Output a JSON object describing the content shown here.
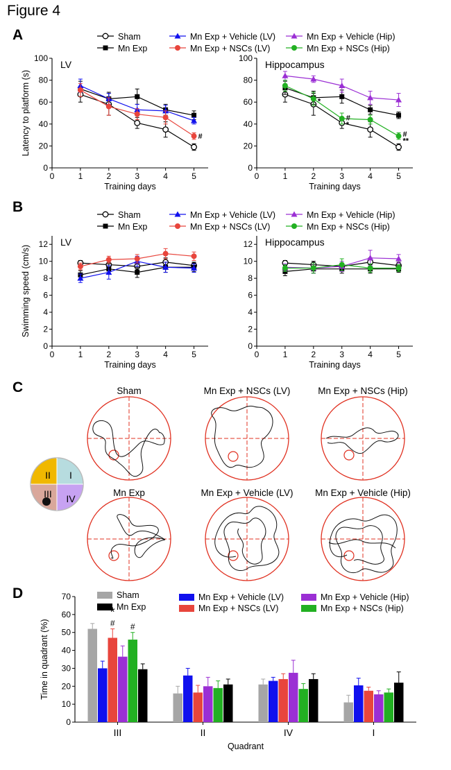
{
  "figure_title": "Figure 4",
  "colors": {
    "sham": "#000000",
    "mn_exp": "#000000",
    "veh_lv": "#1010ee",
    "nsc_lv": "#e8453c",
    "veh_hip": "#9b2fd4",
    "nsc_hip": "#22b022",
    "bar_sham": "#a6a6a6",
    "track_circle": "#e03020"
  },
  "panels": {
    "A": {
      "label": "A",
      "legend": [
        "Sham",
        "Mn Exp",
        "Mn Exp + Vehicle (LV)",
        "Mn Exp + NSCs (LV)",
        "Mn Exp + Vehicle (Hip)",
        "Mn Exp + NSCs (Hip)"
      ]
    },
    "B": {
      "label": "B",
      "legend": [
        "Sham",
        "Mn Exp",
        "Mn Exp + Vehicle (LV)",
        "Mn Exp + NSCs (LV)",
        "Mn Exp + Vehicle (Hip)",
        "Mn Exp + NSCs (Hip)"
      ]
    },
    "C": {
      "label": "C",
      "quadrant_labels": [
        "II",
        "I",
        "III",
        "IV"
      ],
      "track_titles": [
        "Sham",
        "Mn Exp + NSCs (LV)",
        "Mn Exp + NSCs (Hip)",
        "Mn Exp",
        "Mn Exp + Vehicle (LV)",
        "Mn Exp + Vehicle (Hip)"
      ]
    },
    "D": {
      "label": "D",
      "legend": [
        "Sham",
        "Mn Exp",
        "Mn Exp + Vehicle (LV)",
        "Mn Exp + NSCs (LV)",
        "Mn Exp + Vehicle (Hip)",
        "Mn Exp + NSCs (Hip)"
      ]
    }
  },
  "chart_data": [
    {
      "id": "A-LV",
      "type": "line",
      "panel_title": "LV",
      "xlabel": "Training days",
      "ylabel": "Latency to platform (s)",
      "x": [
        1,
        2,
        3,
        4,
        5
      ],
      "xlim": [
        0,
        5.5
      ],
      "ylim": [
        0,
        100
      ],
      "yticks": [
        0,
        20,
        40,
        60,
        80,
        100
      ],
      "series": [
        {
          "name": "Sham",
          "color_key": "sham",
          "marker": "open-circle",
          "values": [
            67,
            58,
            41,
            35,
            19
          ],
          "err": [
            7,
            10,
            5,
            7,
            3
          ]
        },
        {
          "name": "Mn Exp",
          "color_key": "mn_exp",
          "marker": "square",
          "values": [
            72,
            63,
            65,
            53,
            48
          ],
          "err": [
            7,
            6,
            7,
            5,
            4
          ]
        },
        {
          "name": "Mn Exp + Vehicle (LV)",
          "color_key": "veh_lv",
          "marker": "triangle",
          "values": [
            75,
            63,
            53,
            52,
            43
          ],
          "err": [
            6,
            5,
            5,
            5,
            3
          ]
        },
        {
          "name": "Mn Exp + NSCs (LV)",
          "color_key": "nsc_lv",
          "marker": "filled-circle",
          "values": [
            71,
            56,
            49,
            46,
            29
          ],
          "err": [
            6,
            8,
            5,
            6,
            3
          ]
        }
      ],
      "annotations": [
        {
          "x": 5,
          "y": 29,
          "text": "#"
        }
      ]
    },
    {
      "id": "A-Hip",
      "type": "line",
      "panel_title": "Hippocampus",
      "xlabel": "Training days",
      "ylabel": "",
      "x": [
        1,
        2,
        3,
        4,
        5
      ],
      "xlim": [
        0,
        5.5
      ],
      "ylim": [
        0,
        100
      ],
      "yticks": [
        0,
        20,
        40,
        60,
        80,
        100
      ],
      "series": [
        {
          "name": "Sham",
          "color_key": "sham",
          "marker": "open-circle",
          "values": [
            67,
            58,
            41,
            35,
            19
          ],
          "err": [
            7,
            10,
            5,
            7,
            3
          ]
        },
        {
          "name": "Mn Exp",
          "color_key": "mn_exp",
          "marker": "square",
          "values": [
            73,
            64,
            65,
            53,
            48
          ],
          "err": [
            6,
            6,
            6,
            4,
            3
          ]
        },
        {
          "name": "Mn Exp + Vehicle (Hip)",
          "color_key": "veh_hip",
          "marker": "triangle",
          "values": [
            84,
            81,
            75,
            64,
            62
          ],
          "err": [
            4,
            3,
            6,
            6,
            6
          ]
        },
        {
          "name": "Mn Exp + NSCs (Hip)",
          "color_key": "nsc_hip",
          "marker": "filled-circle",
          "values": [
            75,
            63,
            45,
            44,
            29
          ],
          "err": [
            5,
            6,
            5,
            4,
            3
          ]
        }
      ],
      "annotations": [
        {
          "x": 2,
          "y": 61,
          "text": "*"
        },
        {
          "x": 3,
          "y": 46,
          "text": "#"
        },
        {
          "x": 3,
          "y": 40,
          "text": "*"
        },
        {
          "x": 5,
          "y": 31,
          "text": "#"
        },
        {
          "x": 5,
          "y": 25,
          "text": "**"
        }
      ]
    },
    {
      "id": "B-LV",
      "type": "line",
      "panel_title": "LV",
      "xlabel": "Training days",
      "ylabel": "Swimming speed (cm/s)",
      "x": [
        1,
        2,
        3,
        4,
        5
      ],
      "xlim": [
        0,
        5.5
      ],
      "ylim": [
        0,
        13
      ],
      "yticks": [
        0,
        2,
        4,
        6,
        8,
        10,
        12
      ],
      "series": [
        {
          "name": "Sham",
          "color_key": "sham",
          "marker": "open-circle",
          "values": [
            9.8,
            9.6,
            9.4,
            9.9,
            9.5
          ],
          "err": [
            0.3,
            0.4,
            0.4,
            0.5,
            0.4
          ]
        },
        {
          "name": "Mn Exp",
          "color_key": "mn_exp",
          "marker": "square",
          "values": [
            8.4,
            9.1,
            8.7,
            9.3,
            9.3
          ],
          "err": [
            0.5,
            0.6,
            0.6,
            0.6,
            0.5
          ]
        },
        {
          "name": "Mn Exp + Vehicle (LV)",
          "color_key": "veh_lv",
          "marker": "triangle",
          "values": [
            8.0,
            8.7,
            10.0,
            9.3,
            9.2
          ],
          "err": [
            0.5,
            0.8,
            0.6,
            0.6,
            0.5
          ]
        },
        {
          "name": "Mn Exp + NSCs (LV)",
          "color_key": "nsc_lv",
          "marker": "filled-circle",
          "values": [
            9.4,
            10.2,
            10.3,
            10.9,
            10.6
          ],
          "err": [
            0.4,
            0.4,
            0.5,
            0.6,
            0.5
          ]
        }
      ]
    },
    {
      "id": "B-Hip",
      "type": "line",
      "panel_title": "Hippocampus",
      "xlabel": "Training days",
      "ylabel": "",
      "x": [
        1,
        2,
        3,
        4,
        5
      ],
      "xlim": [
        0,
        5.5
      ],
      "ylim": [
        0,
        13
      ],
      "yticks": [
        0,
        2,
        4,
        6,
        8,
        10,
        12
      ],
      "series": [
        {
          "name": "Sham",
          "color_key": "sham",
          "marker": "open-circle",
          "values": [
            9.8,
            9.6,
            9.4,
            9.9,
            9.5
          ],
          "err": [
            0.3,
            0.4,
            0.4,
            0.5,
            0.4
          ]
        },
        {
          "name": "Mn Exp",
          "color_key": "mn_exp",
          "marker": "square",
          "values": [
            8.8,
            9.1,
            9.1,
            9.1,
            9.1
          ],
          "err": [
            0.5,
            0.5,
            0.5,
            0.5,
            0.4
          ]
        },
        {
          "name": "Mn Exp + Vehicle (Hip)",
          "color_key": "veh_hip",
          "marker": "triangle",
          "values": [
            9.3,
            9.2,
            9.4,
            10.4,
            10.3
          ],
          "err": [
            0.4,
            0.6,
            0.6,
            0.9,
            0.5
          ]
        },
        {
          "name": "Mn Exp + NSCs (Hip)",
          "color_key": "nsc_hip",
          "marker": "filled-circle",
          "values": [
            9.2,
            9.2,
            9.6,
            9.2,
            9.2
          ],
          "err": [
            0.4,
            0.6,
            0.7,
            0.5,
            0.4
          ]
        }
      ]
    },
    {
      "id": "D",
      "type": "bar",
      "xlabel": "Quadrant",
      "ylabel": "Time in quadrant (%)",
      "categories": [
        "III",
        "II",
        "IV",
        "I"
      ],
      "ylim": [
        0,
        70
      ],
      "yticks": [
        0,
        10,
        20,
        30,
        40,
        50,
        60,
        70
      ],
      "series": [
        {
          "name": "Sham",
          "color_key": "bar_sham",
          "values": [
            52,
            16,
            21,
            11
          ],
          "err": [
            3,
            4,
            3,
            4
          ]
        },
        {
          "name": "Mn Exp + Vehicle (LV)",
          "color_key": "veh_lv",
          "values": [
            30,
            26,
            23,
            20.5
          ],
          "err": [
            4,
            4,
            2,
            4
          ]
        },
        {
          "name": "Mn Exp + NSCs (LV)",
          "color_key": "nsc_lv",
          "values": [
            47,
            16.5,
            24,
            17.5
          ],
          "err": [
            5,
            4,
            3,
            2
          ]
        },
        {
          "name": "Mn Exp + Vehicle (Hip)",
          "color_key": "veh_hip",
          "values": [
            36.5,
            20,
            27.5,
            15.5
          ],
          "err": [
            6,
            5,
            7,
            2
          ]
        },
        {
          "name": "Mn Exp + NSCs (Hip)",
          "color_key": "nsc_hip",
          "values": [
            46,
            19,
            18.5,
            16.5
          ],
          "err": [
            4,
            4,
            3,
            2
          ]
        },
        {
          "name": "Mn Exp",
          "color_key": "mn_exp",
          "values": [
            29.5,
            21,
            24,
            22
          ],
          "err": [
            3,
            3,
            3,
            6
          ]
        }
      ],
      "annotations": [
        {
          "category": "III",
          "series": "Mn Exp + NSCs (LV)",
          "text": "*"
        },
        {
          "category": "III",
          "series": "Mn Exp + NSCs (LV)",
          "text": "#"
        },
        {
          "category": "III",
          "series": "Mn Exp + NSCs (Hip)",
          "text": "#"
        }
      ]
    }
  ]
}
